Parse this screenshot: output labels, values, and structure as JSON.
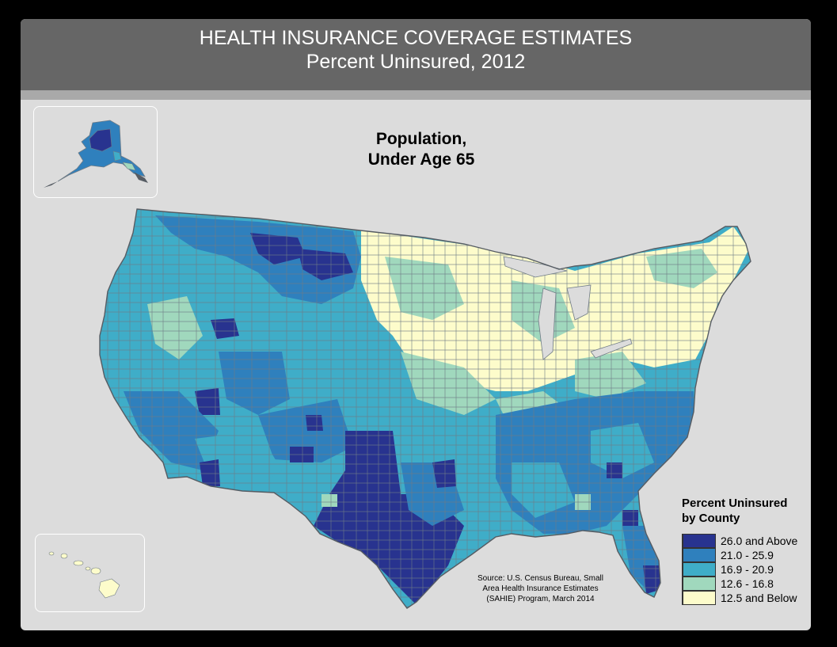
{
  "header": {
    "title": "HEALTH INSURANCE COVERAGE ESTIMATES",
    "subtitle": "Percent Uninsured, 2012"
  },
  "map_title": {
    "line1": "Population,",
    "line2": "Under Age 65"
  },
  "legend": {
    "title_line1": "Percent Uninsured",
    "title_line2": "by County",
    "items": [
      {
        "label": "26.0 and Above",
        "color": "#28338f"
      },
      {
        "label": "21.0 - 25.9",
        "color": "#2f80bd"
      },
      {
        "label": "16.9 - 20.9",
        "color": "#3fadc8"
      },
      {
        "label": "12.6 - 16.8",
        "color": "#a0d8bd"
      },
      {
        "label": "12.5 and Below",
        "color": "#fdfccb"
      }
    ]
  },
  "source": {
    "line1": "Source: U.S. Census Bureau, Small",
    "line2": "Area Health Insurance Estimates",
    "line3": "(SAHIE) Program, March 2014"
  },
  "colors": {
    "background": "#000000",
    "panel": "#dcdcdc",
    "header": "#666666",
    "county_border": "#6f7b86"
  }
}
